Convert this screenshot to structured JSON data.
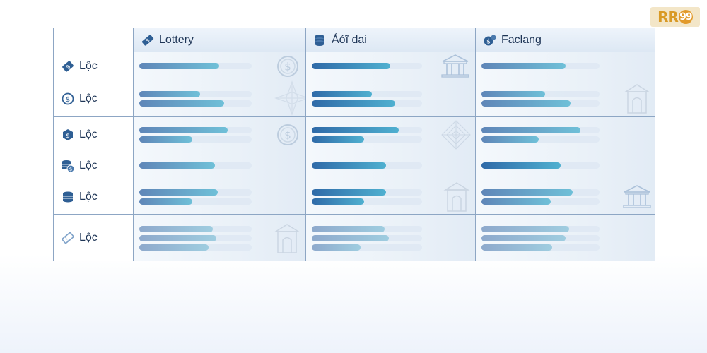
{
  "logo": {
    "text": "RR",
    "suffix": "99"
  },
  "columns": [
    {
      "label": "Lottery",
      "icon": "ticket-icon"
    },
    {
      "label": "Áóĩ dai",
      "icon": "coin-stack-icon"
    },
    {
      "label": "Faclang",
      "icon": "money-bag-icon"
    }
  ],
  "rows": [
    {
      "label": "Lộc",
      "icon": "tag-dollar-icon",
      "bars": [
        [
          0.5
        ],
        [
          0.5
        ],
        [
          0.5
        ]
      ]
    },
    {
      "label": "Lộc",
      "icon": "dollar-circle-icon",
      "bars": [
        [
          0.38,
          0.53
        ],
        [
          0.38,
          0.53
        ],
        [
          0.38,
          0.53
        ]
      ]
    },
    {
      "label": "Lộc",
      "icon": "shield-dollar-icon",
      "bars": [
        [
          0.55,
          0.33
        ],
        [
          0.55,
          0.33
        ],
        [
          0.59,
          0.34
        ]
      ]
    },
    {
      "label": "Lộc",
      "icon": "coins-dollar-icon",
      "bars": [
        [
          0.47
        ],
        [
          0.47
        ],
        [
          0.47
        ]
      ]
    },
    {
      "label": "Lộc",
      "icon": "coin-stack-flat-icon",
      "bars": [
        [
          0.49,
          0.33
        ],
        [
          0.47,
          0.33
        ],
        [
          0.54,
          0.41
        ]
      ]
    },
    {
      "label": "Lộc",
      "icon": "ticket-outline-icon",
      "bars": [
        [
          0.46,
          0.48,
          0.43
        ],
        [
          0.46,
          0.49,
          0.31
        ],
        [
          0.52,
          0.5,
          0.42
        ]
      ]
    }
  ]
}
